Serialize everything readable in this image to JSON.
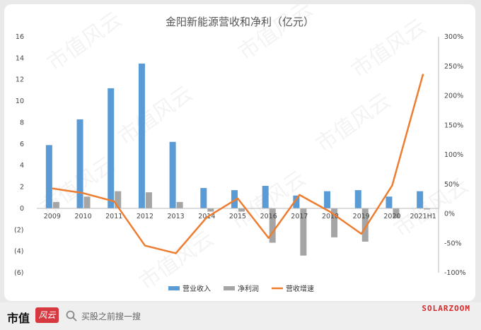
{
  "chart_data": {
    "type": "bar",
    "title": "金阳新能源营收和净利（亿元）",
    "categories": [
      "2009",
      "2010",
      "2011",
      "2012",
      "2013",
      "2014",
      "2015",
      "2016",
      "2017",
      "2018",
      "2019",
      "2020",
      "2021H1"
    ],
    "series": [
      {
        "name": "营业收入",
        "type": "bar",
        "axis": "left",
        "color": "#5b9bd5",
        "values": [
          5.9,
          8.3,
          11.2,
          13.5,
          6.2,
          1.9,
          1.7,
          2.1,
          1.2,
          1.6,
          1.7,
          1.1,
          1.6
        ]
      },
      {
        "name": "净利润",
        "type": "bar",
        "axis": "left",
        "color": "#a5a5a5",
        "values": [
          0.6,
          1.1,
          1.6,
          1.5,
          0.6,
          -0.3,
          -0.3,
          -3.2,
          -4.4,
          -2.7,
          -3.1,
          -0.9,
          -0.1
        ]
      },
      {
        "name": "营收增速",
        "type": "line",
        "axis": "right",
        "color": "#ed7d31",
        "values": [
          43,
          35,
          21,
          -54,
          -67,
          -6,
          26,
          -41,
          32,
          3,
          -34,
          48,
          237
        ]
      }
    ],
    "y_left": {
      "ylim": [
        -6,
        16
      ],
      "ticks": [
        "16",
        "14",
        "12",
        "10",
        "8",
        "6",
        "4",
        "2",
        "0",
        "(2)",
        "(4)",
        "(6)"
      ]
    },
    "y_right": {
      "ylim": [
        -100,
        300
      ],
      "ticks": [
        "300%",
        "250%",
        "200%",
        "150%",
        "100%",
        "50%",
        "0%",
        "-50%",
        "-100%"
      ]
    },
    "legend": "bottom",
    "grid": false
  },
  "watermark": "市值风云",
  "footer": {
    "brand": "市值",
    "brand_logo": "风云",
    "search_placeholder": "买股之前搜一搜",
    "source": "SOLARZOOM",
    "source_color": "#d62828"
  }
}
